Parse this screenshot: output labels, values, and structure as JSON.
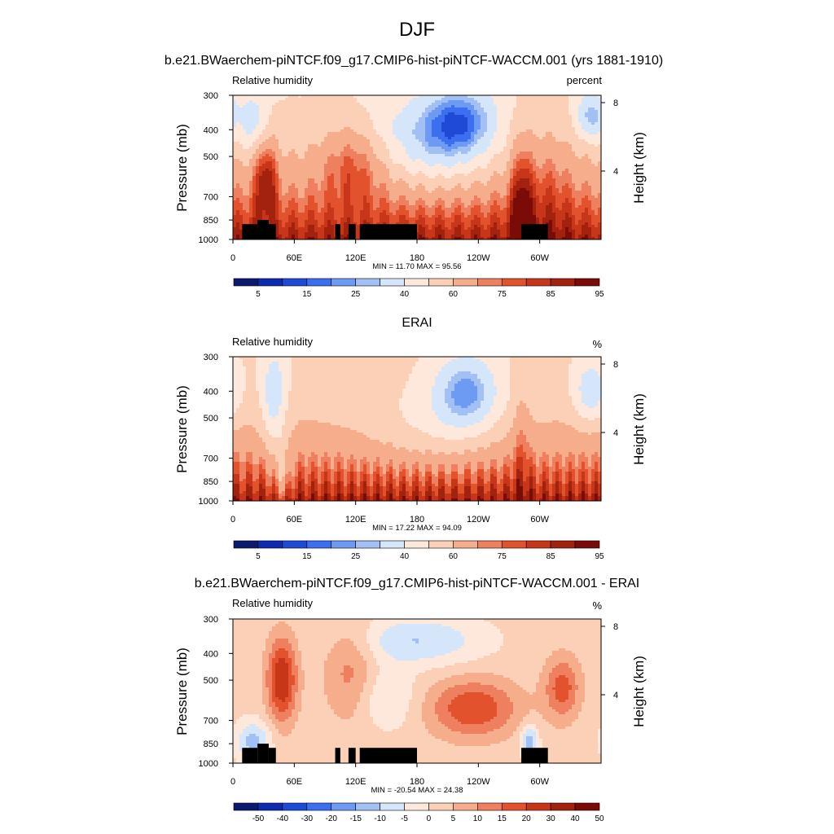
{
  "figure": {
    "main_title": "DJF"
  },
  "colors": {
    "rh_scale": [
      "#0b1a6e",
      "#0c2bb0",
      "#1f4ad6",
      "#3b6ff0",
      "#6d9af2",
      "#a3c0f4",
      "#d6e6fa",
      "#fde8db",
      "#fbd0b6",
      "#f6ad8c",
      "#ee8060",
      "#e2532d",
      "#c8361a",
      "#a3220d",
      "#7a0b06"
    ],
    "diff_scale": [
      "#0b1a6e",
      "#0c2bb0",
      "#1f4ad6",
      "#3b6ff0",
      "#6d9af2",
      "#a3c0f4",
      "#d6e6fa",
      "#fde8db",
      "#fbd0b6",
      "#f6ad8c",
      "#ee8060",
      "#e2532d",
      "#c8361a",
      "#a3220d",
      "#7a0b06"
    ],
    "terrain": "#000000"
  },
  "chart_data": [
    {
      "type": "heatmap",
      "title": "b.e21.BWaerchem-piNTCF.f09_g17.CMIP6-hist-piNTCF-WACCM.001 (yrs 1881-1910)",
      "left_label": "Relative humidity",
      "right_label": "percent",
      "ylabel": "Pressure (mb)",
      "ylabel_right": "Height (km)",
      "xticks": [
        "0",
        "60E",
        "120E",
        "180",
        "120W",
        "60W"
      ],
      "xtick_lon": [
        0,
        60,
        120,
        180,
        240,
        300
      ],
      "xlim": [
        0,
        360
      ],
      "yticks": [
        "300",
        "400",
        "500",
        "700",
        "850",
        "1000"
      ],
      "ytick_p": [
        300,
        400,
        500,
        700,
        850,
        1000
      ],
      "ylim": [
        1000,
        300
      ],
      "height_ticks": [
        "8",
        "4"
      ],
      "height_km": [
        8,
        4
      ],
      "stats": "MIN =  11.70  MAX =  95.56",
      "min": 11.7,
      "max": 95.56,
      "colorbar_labels": [
        "5",
        "15",
        "25",
        "40",
        "60",
        "75",
        "85",
        "95"
      ],
      "terrain": true,
      "field": "model"
    },
    {
      "type": "heatmap",
      "title": "ERAI",
      "left_label": "Relative humidity",
      "right_label": "%",
      "ylabel": "Pressure (mb)",
      "ylabel_right": "Height (km)",
      "xticks": [
        "0",
        "60E",
        "120E",
        "180",
        "120W",
        "60W"
      ],
      "xtick_lon": [
        0,
        60,
        120,
        180,
        240,
        300
      ],
      "xlim": [
        0,
        360
      ],
      "yticks": [
        "300",
        "400",
        "500",
        "700",
        "850",
        "1000"
      ],
      "ytick_p": [
        300,
        400,
        500,
        700,
        850,
        1000
      ],
      "ylim": [
        1000,
        300
      ],
      "height_ticks": [
        "8",
        "4"
      ],
      "height_km": [
        8,
        4
      ],
      "stats": "MIN =  17.22  MAX =  94.09",
      "min": 17.22,
      "max": 94.09,
      "colorbar_labels": [
        "5",
        "15",
        "25",
        "40",
        "60",
        "75",
        "85",
        "95"
      ],
      "terrain": false,
      "field": "obs"
    },
    {
      "type": "heatmap",
      "title": "b.e21.BWaerchem-piNTCF.f09_g17.CMIP6-hist-piNTCF-WACCM.001 - ERAI",
      "left_label": "Relative humidity",
      "right_label": "%",
      "ylabel": "Pressure (mb)",
      "ylabel_right": "Height (km)",
      "xticks": [
        "0",
        "60E",
        "120E",
        "180",
        "120W",
        "60W"
      ],
      "xtick_lon": [
        0,
        60,
        120,
        180,
        240,
        300
      ],
      "xlim": [
        0,
        360
      ],
      "yticks": [
        "300",
        "400",
        "500",
        "700",
        "850",
        "1000"
      ],
      "ytick_p": [
        300,
        400,
        500,
        700,
        850,
        1000
      ],
      "ylim": [
        1000,
        300
      ],
      "height_ticks": [
        "8",
        "4"
      ],
      "height_km": [
        8,
        4
      ],
      "stats": "MIN = -20.54  MAX =  24.38",
      "min": -20.54,
      "max": 24.38,
      "colorbar_labels": [
        "-50",
        "-40",
        "-30",
        "-20",
        "-15",
        "-10",
        "-5",
        "0",
        "5",
        "10",
        "15",
        "20",
        "30",
        "40",
        "50"
      ],
      "terrain": true,
      "field": "diff"
    }
  ]
}
